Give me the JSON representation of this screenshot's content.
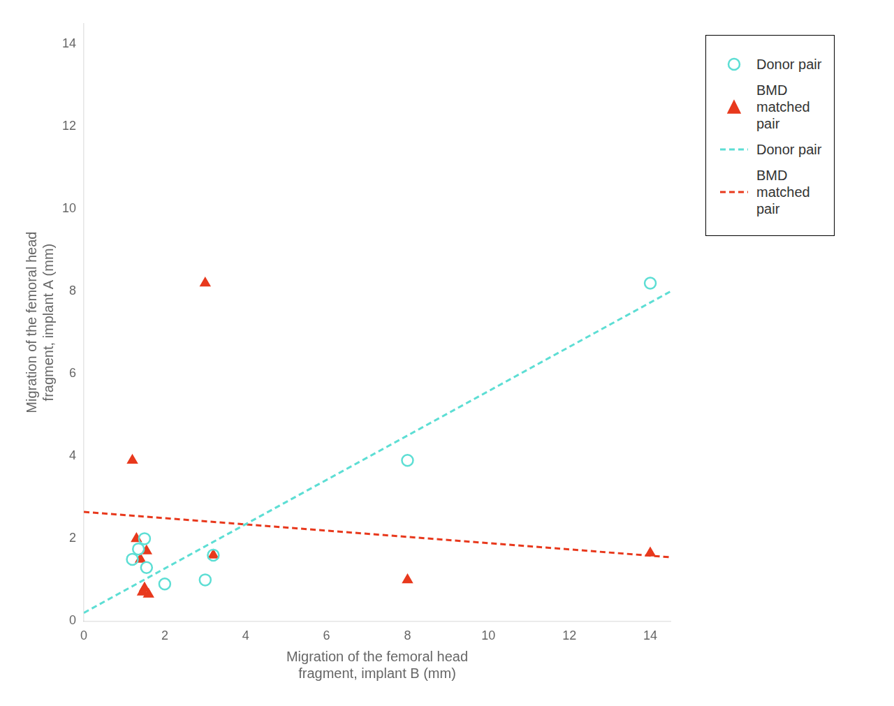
{
  "chart_data": {
    "type": "scatter",
    "xlabel": "Migration of the femoral head\nfragment, implant B (mm)",
    "ylabel": "Migration of the femoral head\nfragment, implant A (mm)",
    "series": [
      {
        "name": "Donor pair",
        "type": "scatter",
        "marker": "open_circle",
        "color": "#5DDED4",
        "x": [
          1.2,
          1.35,
          1.5,
          1.55,
          2.0,
          3.0,
          3.2,
          8.0,
          14.0
        ],
        "values": [
          1.5,
          1.75,
          2.0,
          1.3,
          0.9,
          1.0,
          1.6,
          3.9,
          8.2
        ]
      },
      {
        "name": "BMD\nmatched\npair",
        "type": "scatter",
        "marker": "triangle",
        "color": "#E8391D",
        "x": [
          1.2,
          1.3,
          1.4,
          1.45,
          1.5,
          1.55,
          1.6,
          3.0,
          3.2,
          8.0,
          14.0
        ],
        "values": [
          3.9,
          2.0,
          1.5,
          0.7,
          0.8,
          1.7,
          0.65,
          8.2,
          1.6,
          1.0,
          1.65
        ]
      },
      {
        "name": "Donor pair",
        "type": "line",
        "line_style": "dashed",
        "color": "#5DDED4",
        "x": [
          0,
          14.5
        ],
        "values": [
          0.2,
          8.0
        ]
      },
      {
        "name": "BMD\nmatched\npair",
        "type": "line",
        "line_style": "dashed",
        "color": "#E8391D",
        "x": [
          0,
          14.5
        ],
        "values": [
          2.65,
          1.55
        ]
      }
    ],
    "xlim": [
      0,
      14.5
    ],
    "ylim": [
      0,
      14.5
    ],
    "xticks": [
      0,
      2,
      4,
      6,
      8,
      10,
      12,
      14
    ],
    "yticks": [
      0,
      2,
      4,
      6,
      8,
      10,
      12,
      14
    ],
    "grid": false,
    "legend": "right"
  }
}
